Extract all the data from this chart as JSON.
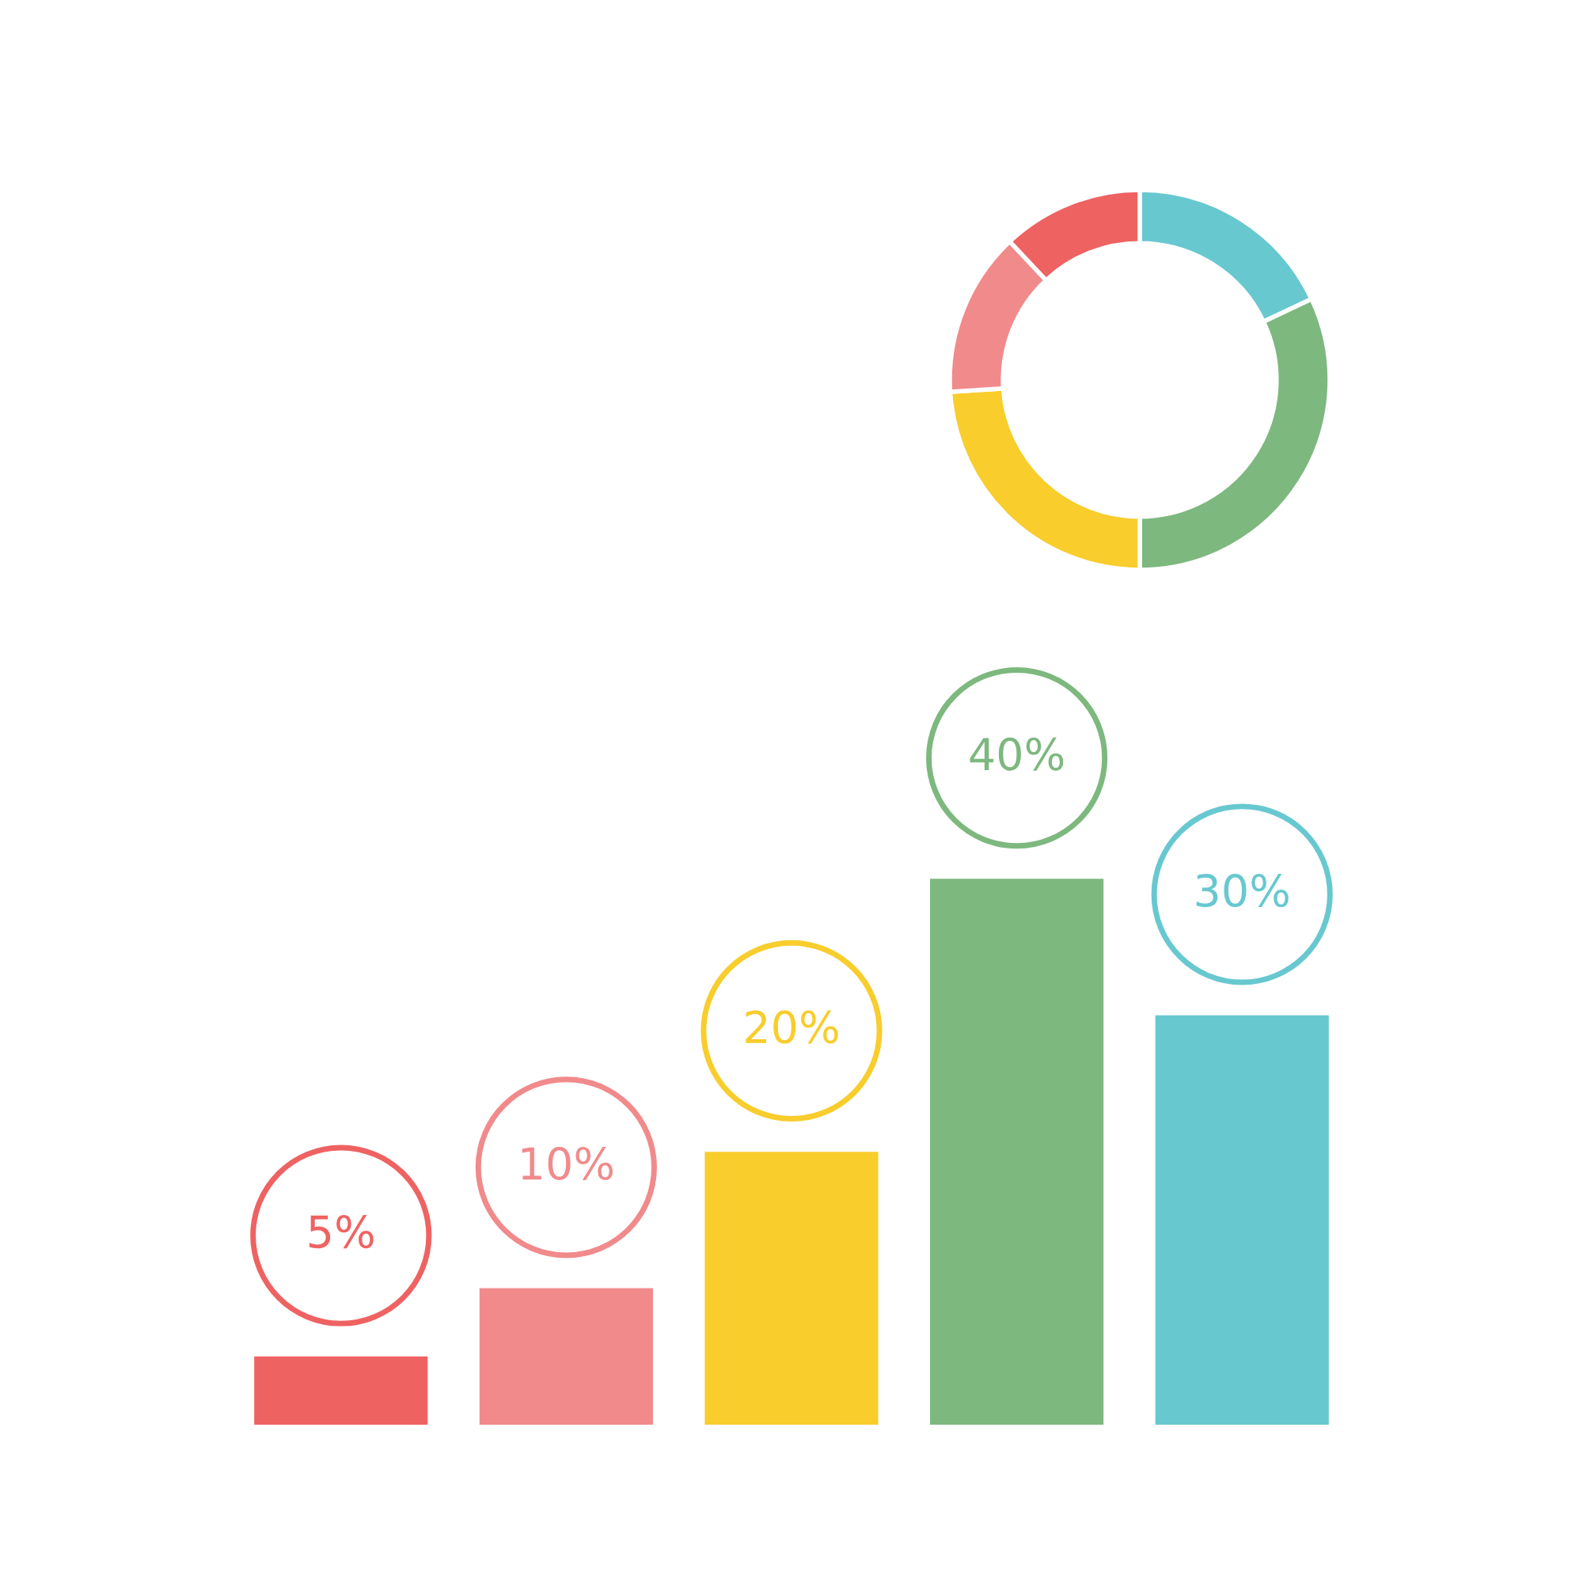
{
  "chart_data": [
    {
      "type": "donut",
      "categories": [
        null,
        null,
        null,
        null,
        null
      ],
      "values": [
        18,
        32,
        24,
        14,
        12
      ],
      "colors": [
        "#68c8d0",
        "#7db87e",
        "#f8cd2c",
        "#f18a8b",
        "#ef6262"
      ],
      "legend": false
    },
    {
      "type": "bar",
      "categories": [
        null,
        null,
        null,
        null,
        null
      ],
      "values": [
        5,
        10,
        20,
        40,
        30
      ],
      "colors": [
        "#ef6262",
        "#f18a8b",
        "#f8cd2c",
        "#7db87e",
        "#68c8d0"
      ],
      "value_labels": [
        "5%",
        "10%",
        "20%",
        "40%",
        "30%"
      ],
      "legend": false
    }
  ]
}
